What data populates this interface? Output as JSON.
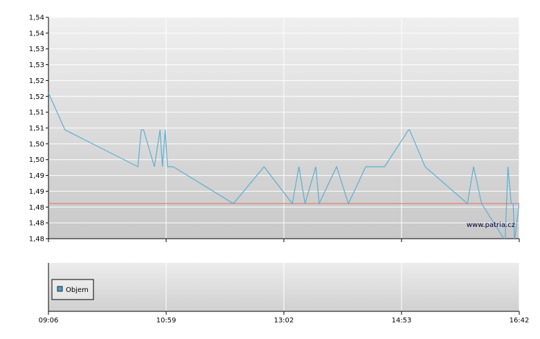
{
  "chart_data": {
    "type": "line",
    "watermark": "www.patria.cz",
    "colors": {
      "series": "#5aaed0",
      "reference": "#e07a6a",
      "grid": "#ffffff",
      "axis": "#000000",
      "legend_swatch": "#4aa0d0"
    },
    "main_panel": {
      "ylim": [
        1.48,
        1.54
      ],
      "ytick_labels": [
        "1,48",
        "1,48",
        "1,48",
        "1,49",
        "1,49",
        "1,50",
        "1,50",
        "1,51",
        "1,51",
        "1,52",
        "1,52",
        "1,53",
        "1,53",
        "1,54",
        "1,54"
      ],
      "reference_line": 1.4895,
      "series": [
        {
          "x": [
            0.0,
            0.035,
            0.19,
            0.197,
            0.202,
            0.225,
            0.237,
            0.242,
            0.248,
            0.253,
            0.265,
            0.393,
            0.458,
            0.518,
            0.532,
            0.545,
            0.568,
            0.575,
            0.612,
            0.637,
            0.674,
            0.711,
            0.714,
            0.765,
            0.767,
            0.8,
            0.89,
            0.903,
            0.92,
            0.97,
            0.976,
            0.983,
            0.987,
            0.99,
            1.0,
            1.03,
            1.05
          ],
          "y": [
            1.5195,
            1.5095,
            1.4995,
            1.5095,
            1.5095,
            1.4995,
            1.5095,
            1.4995,
            1.5095,
            1.4995,
            1.4995,
            1.4895,
            1.4995,
            1.4895,
            1.4995,
            1.4895,
            1.4995,
            1.4895,
            1.4995,
            1.4895,
            1.4995,
            1.4995,
            1.4995,
            1.5095,
            1.5095,
            1.4995,
            1.4895,
            1.4995,
            1.4895,
            1.4795,
            1.4995,
            1.4895,
            1.4895,
            1.4795,
            1.4895,
            1.4995,
            1.4895
          ]
        }
      ]
    },
    "volume_panel": {
      "legend": [
        "Objem"
      ]
    },
    "x_tick_labels": [
      "09:06",
      "10:59",
      "13:02",
      "14:53",
      "16:42"
    ]
  }
}
